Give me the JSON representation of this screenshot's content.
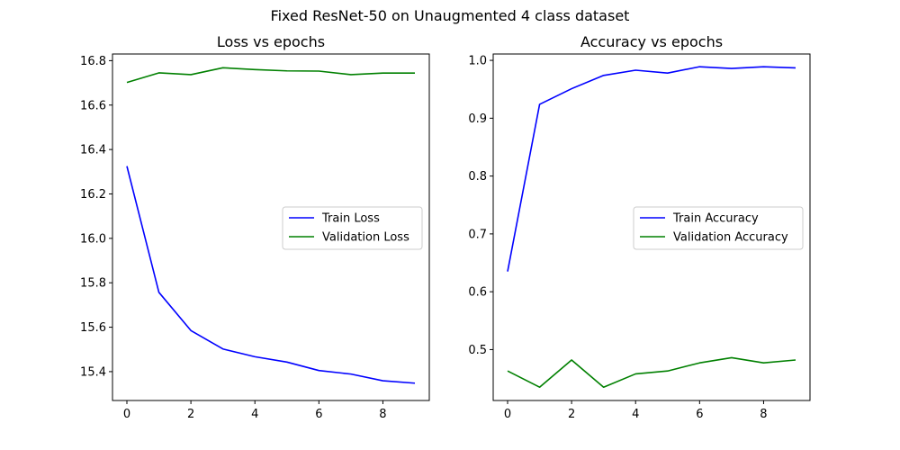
{
  "figure": {
    "suptitle": "Fixed ResNet-50 on Unaugmented 4 class dataset"
  },
  "chart_data": [
    {
      "type": "line",
      "title": "Loss vs epochs",
      "xlabel": "",
      "ylabel": "",
      "x": [
        0,
        1,
        2,
        3,
        4,
        5,
        6,
        7,
        8,
        9
      ],
      "xlim": [
        -0.45,
        9.45
      ],
      "ylim": [
        15.27,
        16.83
      ],
      "xticks": [
        0,
        2,
        4,
        6,
        8
      ],
      "yticks": [
        15.4,
        15.6,
        15.8,
        16.0,
        16.2,
        16.4,
        16.6,
        16.8
      ],
      "grid": false,
      "legend_position": "center-right",
      "series": [
        {
          "name": "Train Loss",
          "color": "#0000ff",
          "values": [
            16.325,
            15.757,
            15.585,
            15.502,
            15.467,
            15.443,
            15.405,
            15.389,
            15.359,
            15.348
          ]
        },
        {
          "name": "Validation Loss",
          "color": "#008000",
          "values": [
            16.702,
            16.745,
            16.737,
            16.768,
            16.76,
            16.754,
            16.753,
            16.737,
            16.744,
            16.744
          ]
        }
      ]
    },
    {
      "type": "line",
      "title": "Accuracy vs epochs",
      "xlabel": "",
      "ylabel": "",
      "x": [
        0,
        1,
        2,
        3,
        4,
        5,
        6,
        7,
        8,
        9
      ],
      "xlim": [
        -0.45,
        9.45
      ],
      "ylim": [
        0.412,
        1.011
      ],
      "xticks": [
        0,
        2,
        4,
        6,
        8
      ],
      "yticks": [
        0.5,
        0.6,
        0.7,
        0.8,
        0.9,
        1.0
      ],
      "grid": false,
      "legend_position": "center-right",
      "series": [
        {
          "name": "Train Accuracy",
          "color": "#0000ff",
          "values": [
            0.635,
            0.924,
            0.951,
            0.974,
            0.983,
            0.978,
            0.989,
            0.986,
            0.989,
            0.987
          ]
        },
        {
          "name": "Validation Accuracy",
          "color": "#008000",
          "values": [
            0.463,
            0.435,
            0.482,
            0.435,
            0.458,
            0.463,
            0.477,
            0.486,
            0.477,
            0.482
          ]
        }
      ]
    }
  ]
}
